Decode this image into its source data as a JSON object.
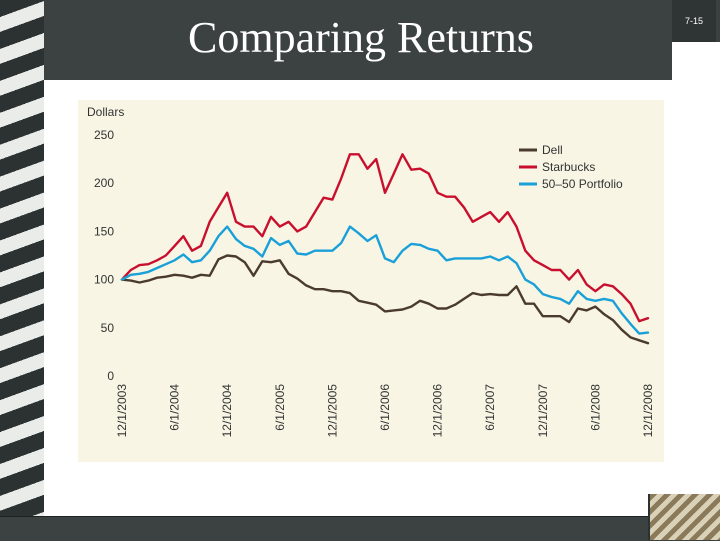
{
  "slide": {
    "title": "Comparing Returns",
    "number": "7-15"
  },
  "colors": {
    "background": "#f8f5e4",
    "dell": "#4a3b2e",
    "starbucks": "#c8102e",
    "portfolio": "#1aa0d8"
  },
  "chart_data": {
    "type": "line",
    "ylabel": "Dollars",
    "ylim": [
      0,
      250
    ],
    "yticks": [
      "0",
      "50",
      "100",
      "150",
      "200",
      "250"
    ],
    "xticks": [
      "12/1/2003",
      "6/1/2004",
      "12/1/2004",
      "6/1/2005",
      "12/1/2005",
      "6/1/2006",
      "12/1/2006",
      "6/1/2007",
      "12/1/2007",
      "6/1/2008",
      "12/1/2008"
    ],
    "legend_position": "top-right",
    "x": [
      0,
      1,
      2,
      3,
      4,
      5,
      6,
      7,
      8,
      9,
      10,
      11,
      12,
      13,
      14,
      15,
      16,
      17,
      18,
      19,
      20,
      21,
      22,
      23,
      24,
      25,
      26,
      27,
      28,
      29,
      30,
      31,
      32,
      33,
      34,
      35,
      36,
      37,
      38,
      39,
      40,
      41,
      42,
      43,
      44,
      45,
      46,
      47,
      48,
      49,
      50,
      51,
      52,
      53,
      54,
      55,
      56,
      57,
      58,
      59,
      60
    ],
    "series": [
      {
        "name": "Dell",
        "color": "#4a3b2e",
        "values": [
          100,
          99,
          97,
          99,
          102,
          103,
          105,
          104,
          102,
          105,
          104,
          121,
          125,
          124,
          118,
          104,
          119,
          118,
          120,
          106,
          101,
          94,
          90,
          90,
          88,
          88,
          86,
          78,
          76,
          74,
          67,
          68,
          69,
          72,
          78,
          75,
          70,
          70,
          74,
          80,
          86,
          84,
          85,
          84,
          84,
          93,
          75,
          75,
          62,
          62,
          62,
          56,
          70,
          68,
          72,
          64,
          58,
          48,
          40,
          37,
          34
        ]
      },
      {
        "name": "Starbucks",
        "color": "#c8102e",
        "values": [
          100,
          110,
          115,
          116,
          120,
          125,
          135,
          145,
          130,
          135,
          160,
          175,
          190,
          160,
          155,
          155,
          145,
          165,
          155,
          160,
          150,
          155,
          170,
          185,
          183,
          205,
          230,
          230,
          215,
          225,
          190,
          210,
          230,
          214,
          215,
          210,
          190,
          186,
          186,
          175,
          160,
          165,
          170,
          160,
          170,
          155,
          130,
          120,
          115,
          110,
          110,
          100,
          110,
          95,
          88,
          95,
          93,
          85,
          75,
          57,
          60
        ]
      },
      {
        "name": "50–50 Portfolio",
        "color": "#1aa0d8",
        "values": [
          100,
          105,
          106,
          108,
          112,
          116,
          120,
          126,
          118,
          120,
          130,
          145,
          155,
          142,
          135,
          132,
          124,
          143,
          136,
          140,
          127,
          126,
          130,
          130,
          130,
          138,
          155,
          148,
          140,
          146,
          122,
          118,
          130,
          137,
          136,
          132,
          130,
          120,
          122,
          122,
          122,
          122,
          124,
          120,
          124,
          117,
          100,
          95,
          85,
          82,
          80,
          75,
          88,
          80,
          78,
          80,
          78,
          65,
          54,
          44,
          45
        ]
      }
    ]
  }
}
